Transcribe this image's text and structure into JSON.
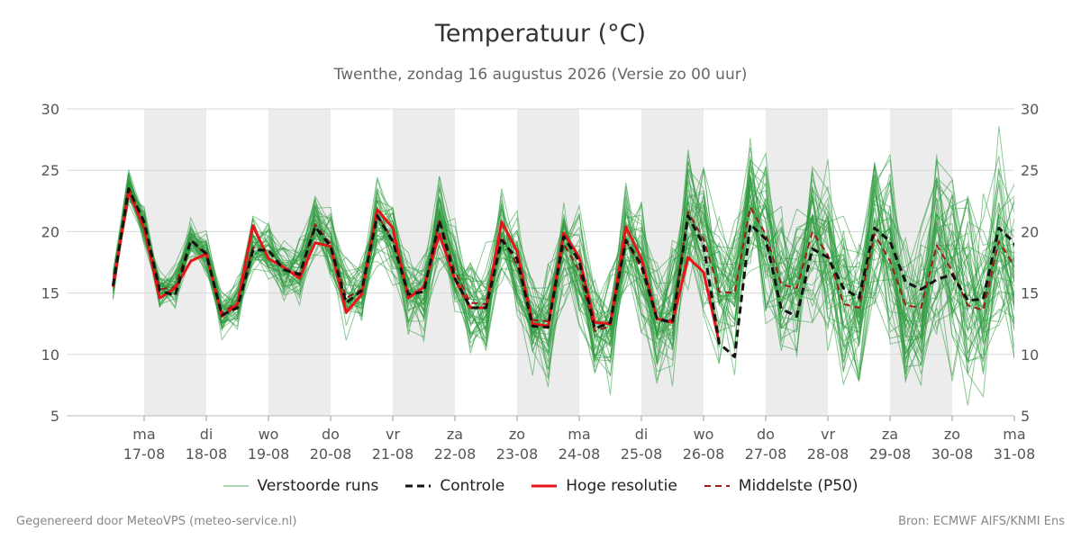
{
  "title": "Temperatuur (°C)",
  "subtitle": "Twenthe, zondag 16 augustus 2026 (Versie zo 00 uur)",
  "footer_left": "Gegenereerd door MeteoVPS (meteo-service.nl)",
  "footer_right": "Bron: ECMWF AIFS/KNMI Ens",
  "legend": {
    "ensemble": "Verstoorde runs",
    "control": "Controle",
    "hires": "Hoge resolutie",
    "median": "Middelste (P50)"
  },
  "colors": {
    "ensemble": "#2e9b3e",
    "control": "#111111",
    "hires": "#e8141a",
    "median": "#a01a1a",
    "weekend_band": "#ececec",
    "grid": "#d8d8d8"
  },
  "chart_data": {
    "type": "line",
    "title": "Temperatuur (°C)",
    "ylim": [
      5,
      30
    ],
    "yticks": [
      5,
      10,
      15,
      20,
      25,
      30
    ],
    "grid": true,
    "legend_position": "bottom",
    "x_unit": "days from 16-08 00:00",
    "x_start_date": "16-08",
    "xlim": [
      0,
      15.5
    ],
    "x_ticks": [
      {
        "day": "ma",
        "date": "17-08"
      },
      {
        "day": "di",
        "date": "18-08"
      },
      {
        "day": "wo",
        "date": "19-08"
      },
      {
        "day": "do",
        "date": "20-08"
      },
      {
        "day": "vr",
        "date": "21-08"
      },
      {
        "day": "za",
        "date": "22-08"
      },
      {
        "day": "zo",
        "date": "23-08"
      },
      {
        "day": "ma",
        "date": "24-08"
      },
      {
        "day": "di",
        "date": "25-08"
      },
      {
        "day": "wo",
        "date": "26-08"
      },
      {
        "day": "do",
        "date": "27-08"
      },
      {
        "day": "vr",
        "date": "28-08"
      },
      {
        "day": "za",
        "date": "29-08"
      },
      {
        "day": "zo",
        "date": "30-08"
      },
      {
        "day": "ma",
        "date": "31-08"
      }
    ],
    "shaded_days": [
      1,
      3,
      5,
      7,
      9,
      11,
      13
    ],
    "ensemble_members": 50,
    "series": [
      {
        "name": "Controle",
        "style": "dashed",
        "points": [
          [
            0.5,
            15.6
          ],
          [
            0.75,
            23.5
          ],
          [
            1.0,
            20.8
          ],
          [
            1.25,
            15.2
          ],
          [
            1.5,
            14.8
          ],
          [
            1.75,
            19.3
          ],
          [
            2.0,
            18.2
          ],
          [
            2.25,
            13.2
          ],
          [
            2.5,
            13.8
          ],
          [
            2.75,
            18.5
          ],
          [
            3.0,
            18.5
          ],
          [
            3.25,
            16.9
          ],
          [
            3.5,
            16.5
          ],
          [
            3.75,
            20.4
          ],
          [
            4.0,
            18.8
          ],
          [
            4.25,
            14.2
          ],
          [
            4.5,
            15.2
          ],
          [
            4.75,
            21.3
          ],
          [
            5.0,
            19.2
          ],
          [
            5.25,
            14.9
          ],
          [
            5.5,
            15.1
          ],
          [
            5.75,
            20.9
          ],
          [
            6.0,
            16.2
          ],
          [
            6.25,
            13.8
          ],
          [
            6.5,
            13.8
          ],
          [
            6.75,
            19.3
          ],
          [
            7.0,
            17.8
          ],
          [
            7.25,
            12.3
          ],
          [
            7.5,
            12.2
          ],
          [
            7.75,
            19.6
          ],
          [
            8.0,
            17.6
          ],
          [
            8.25,
            12.1
          ],
          [
            8.5,
            12.6
          ],
          [
            8.75,
            19.3
          ],
          [
            9.0,
            17.3
          ],
          [
            9.25,
            12.9
          ],
          [
            9.5,
            12.6
          ],
          [
            9.75,
            21.3
          ],
          [
            10.0,
            18.9
          ],
          [
            10.25,
            10.9
          ],
          [
            10.5,
            9.8
          ],
          [
            10.75,
            20.6
          ],
          [
            11.0,
            19.4
          ],
          [
            11.25,
            13.7
          ],
          [
            11.5,
            13.1
          ],
          [
            11.75,
            18.6
          ],
          [
            12.0,
            17.9
          ],
          [
            12.25,
            15.4
          ],
          [
            12.5,
            14.6
          ],
          [
            12.75,
            20.3
          ],
          [
            13.0,
            19.2
          ],
          [
            13.25,
            15.9
          ],
          [
            13.5,
            15.3
          ],
          [
            13.75,
            16.1
          ],
          [
            14.0,
            16.5
          ],
          [
            14.25,
            14.4
          ],
          [
            14.5,
            14.5
          ],
          [
            14.75,
            20.3
          ],
          [
            15.0,
            19.1
          ],
          [
            15.25,
            14.7
          ],
          [
            15.5,
            14.5
          ]
        ]
      },
      {
        "name": "Hoge resolutie",
        "style": "solid",
        "points": [
          [
            0.5,
            15.5
          ],
          [
            0.75,
            23.3
          ],
          [
            1.0,
            20.3
          ],
          [
            1.25,
            14.6
          ],
          [
            1.5,
            15.4
          ],
          [
            1.75,
            17.6
          ],
          [
            2.0,
            18.2
          ],
          [
            2.25,
            13.1
          ],
          [
            2.5,
            14.1
          ],
          [
            2.75,
            20.5
          ],
          [
            3.0,
            17.8
          ],
          [
            3.25,
            17.1
          ],
          [
            3.5,
            16.2
          ],
          [
            3.75,
            19.1
          ],
          [
            4.0,
            18.8
          ],
          [
            4.25,
            13.4
          ],
          [
            4.5,
            14.9
          ],
          [
            4.75,
            21.8
          ],
          [
            5.0,
            20.3
          ],
          [
            5.25,
            14.6
          ],
          [
            5.5,
            15.5
          ],
          [
            5.75,
            19.8
          ],
          [
            6.0,
            16.1
          ],
          [
            6.25,
            13.8
          ],
          [
            6.5,
            13.8
          ],
          [
            6.75,
            20.8
          ],
          [
            7.0,
            18.4
          ],
          [
            7.25,
            12.5
          ],
          [
            7.5,
            12.3
          ],
          [
            7.75,
            19.9
          ],
          [
            8.0,
            17.9
          ],
          [
            8.25,
            12.6
          ],
          [
            8.5,
            12.5
          ],
          [
            8.75,
            20.4
          ],
          [
            9.0,
            17.8
          ],
          [
            9.25,
            12.9
          ],
          [
            9.5,
            12.6
          ],
          [
            9.75,
            17.9
          ],
          [
            10.0,
            16.7
          ],
          [
            10.25,
            11.0
          ]
        ]
      },
      {
        "name": "Middelste (P50)",
        "style": "dashed",
        "points": [
          [
            0.5,
            15.8
          ],
          [
            0.75,
            23.6
          ],
          [
            1.0,
            20.6
          ],
          [
            1.25,
            15.3
          ],
          [
            1.5,
            15.5
          ],
          [
            1.75,
            19.3
          ],
          [
            2.0,
            18.1
          ],
          [
            2.25,
            13.4
          ],
          [
            2.5,
            14.2
          ],
          [
            2.75,
            18.7
          ],
          [
            3.0,
            18.4
          ],
          [
            3.25,
            17.0
          ],
          [
            3.5,
            16.6
          ],
          [
            3.75,
            20.6
          ],
          [
            4.0,
            19.0
          ],
          [
            4.25,
            14.6
          ],
          [
            4.5,
            15.3
          ],
          [
            4.75,
            21.4
          ],
          [
            5.0,
            19.3
          ],
          [
            5.25,
            15.0
          ],
          [
            5.5,
            15.2
          ],
          [
            5.75,
            21.0
          ],
          [
            6.0,
            16.8
          ],
          [
            6.25,
            14.2
          ],
          [
            6.5,
            14.1
          ],
          [
            6.75,
            19.6
          ],
          [
            7.0,
            17.3
          ],
          [
            7.25,
            12.8
          ],
          [
            7.5,
            12.7
          ],
          [
            7.75,
            19.0
          ],
          [
            8.0,
            16.8
          ],
          [
            8.25,
            11.9
          ],
          [
            8.5,
            12.3
          ],
          [
            8.75,
            19.3
          ],
          [
            9.0,
            17.0
          ],
          [
            9.25,
            12.9
          ],
          [
            9.5,
            12.8
          ],
          [
            9.75,
            21.6
          ],
          [
            10.0,
            19.4
          ],
          [
            10.25,
            15.1
          ],
          [
            10.5,
            15.0
          ],
          [
            10.75,
            22.0
          ],
          [
            11.0,
            19.8
          ],
          [
            11.25,
            15.7
          ],
          [
            11.5,
            15.4
          ],
          [
            11.75,
            20.0
          ],
          [
            12.0,
            18.1
          ],
          [
            12.25,
            14.1
          ],
          [
            12.5,
            13.8
          ],
          [
            12.75,
            19.8
          ],
          [
            13.0,
            17.6
          ],
          [
            13.25,
            14.0
          ],
          [
            13.5,
            13.8
          ],
          [
            13.75,
            18.9
          ],
          [
            14.0,
            16.8
          ],
          [
            14.25,
            14.0
          ],
          [
            14.5,
            13.6
          ],
          [
            14.75,
            19.2
          ],
          [
            15.0,
            17.2
          ],
          [
            15.25,
            13.8
          ],
          [
            15.5,
            13.6
          ]
        ]
      }
    ]
  }
}
